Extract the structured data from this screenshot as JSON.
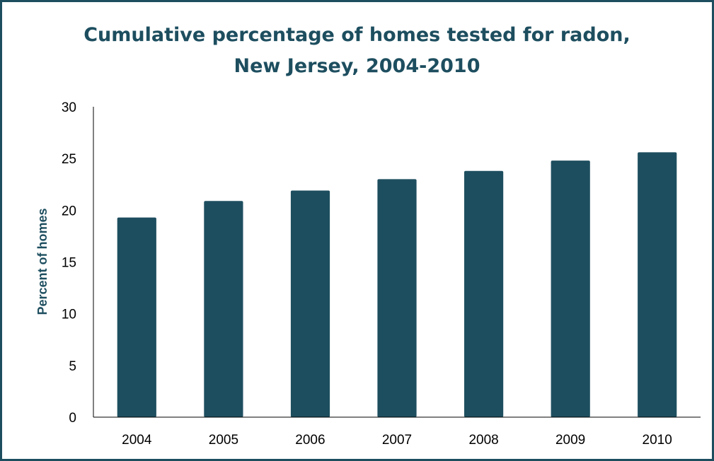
{
  "chart_data": {
    "type": "bar",
    "title_lines": [
      "Cumulative percentage of homes tested for radon,",
      "New Jersey, 2004-2010"
    ],
    "xlabel": "",
    "ylabel": "Percent of homes",
    "categories": [
      "2004",
      "2005",
      "2006",
      "2007",
      "2008",
      "2009",
      "2010"
    ],
    "values": [
      19.3,
      20.9,
      21.9,
      23.0,
      23.8,
      24.8,
      25.6
    ],
    "ylim": [
      0,
      30
    ],
    "yticks": [
      0,
      5,
      10,
      15,
      20,
      25,
      30
    ],
    "grid": false,
    "legend": "none",
    "bar_color": "#1d4e5f"
  }
}
